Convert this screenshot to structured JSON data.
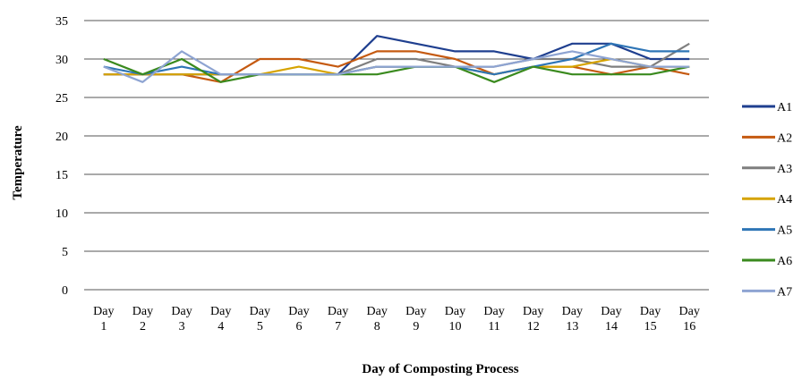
{
  "chart_data": {
    "type": "line",
    "xlabel": "Day of Composting  Process",
    "ylabel": "Temperature",
    "ylim": [
      0,
      35
    ],
    "yticks": [
      0,
      5,
      10,
      15,
      20,
      25,
      30,
      35
    ],
    "grid": "horizontal",
    "legend_position": "right",
    "categories": [
      [
        "Day",
        "1"
      ],
      [
        "Day",
        "2"
      ],
      [
        "Day",
        "3"
      ],
      [
        "Day",
        "4"
      ],
      [
        "Day",
        "5"
      ],
      [
        "Day",
        "6"
      ],
      [
        "Day",
        "7"
      ],
      [
        "Day",
        "8"
      ],
      [
        "Day",
        "9"
      ],
      [
        "Day",
        "10"
      ],
      [
        "Day",
        "11"
      ],
      [
        "Day",
        "12"
      ],
      [
        "Day",
        "13"
      ],
      [
        "Day",
        "14"
      ],
      [
        "Day",
        "15"
      ],
      [
        "Day",
        "16"
      ]
    ],
    "series": [
      {
        "name": "A1",
        "color": "#1f3f8f",
        "values": [
          28,
          28,
          28,
          28,
          28,
          28,
          28,
          33,
          32,
          31,
          31,
          30,
          32,
          32,
          30,
          30
        ]
      },
      {
        "name": "A2",
        "color": "#c55a11",
        "values": [
          28,
          28,
          28,
          27,
          30,
          30,
          29,
          31,
          31,
          30,
          28,
          29,
          29,
          28,
          29,
          28
        ]
      },
      {
        "name": "A3",
        "color": "#7f7f7f",
        "values": [
          28,
          28,
          28,
          28,
          28,
          28,
          28,
          30,
          30,
          29,
          29,
          30,
          30,
          29,
          29,
          32
        ]
      },
      {
        "name": "A4",
        "color": "#d6a300",
        "values": [
          28,
          28,
          28,
          28,
          28,
          29,
          28,
          29,
          29,
          29,
          28,
          29,
          29,
          30,
          29,
          29
        ]
      },
      {
        "name": "A5",
        "color": "#2e75b6",
        "values": [
          29,
          28,
          29,
          28,
          28,
          28,
          28,
          29,
          29,
          29,
          28,
          29,
          30,
          32,
          31,
          31
        ]
      },
      {
        "name": "A6",
        "color": "#3a8a1e",
        "values": [
          30,
          28,
          30,
          27,
          28,
          28,
          28,
          28,
          29,
          29,
          27,
          29,
          28,
          28,
          28,
          29
        ]
      },
      {
        "name": "A7",
        "color": "#8ea4d2",
        "values": [
          29,
          27,
          31,
          28,
          28,
          28,
          28,
          29,
          29,
          29,
          29,
          30,
          31,
          30,
          29,
          29
        ]
      }
    ]
  }
}
